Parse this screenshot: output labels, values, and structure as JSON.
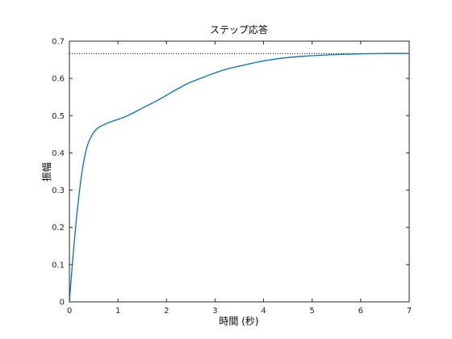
{
  "chart_data": {
    "type": "line",
    "title": "ステップ応答",
    "xlabel": "時間 (秒)",
    "ylabel": "振幅",
    "xlim": [
      0,
      7
    ],
    "ylim": [
      0,
      0.7
    ],
    "x_ticks": [
      "0",
      "1",
      "2",
      "3",
      "4",
      "5",
      "6",
      "7"
    ],
    "y_ticks": [
      "0",
      "0.1",
      "0.2",
      "0.3",
      "0.4",
      "0.5",
      "0.6",
      "0.7"
    ],
    "grid": false,
    "legend": "none",
    "series": [
      {
        "color": "#0072bd",
        "style": "solid",
        "x": [
          0,
          0.05,
          0.1,
          0.15,
          0.2,
          0.25,
          0.3,
          0.35,
          0.4,
          0.5,
          0.6,
          0.7,
          0.8,
          1.0,
          1.2,
          1.5,
          1.8,
          2.0,
          2.3,
          2.5,
          2.8,
          3.0,
          3.3,
          3.5,
          4.0,
          4.5,
          5.0,
          5.5,
          6.0,
          6.5,
          7.0
        ],
        "y": [
          0,
          0.085,
          0.16,
          0.23,
          0.29,
          0.34,
          0.38,
          0.41,
          0.43,
          0.455,
          0.468,
          0.475,
          0.481,
          0.49,
          0.5,
          0.52,
          0.54,
          0.555,
          0.577,
          0.59,
          0.605,
          0.615,
          0.627,
          0.633,
          0.647,
          0.656,
          0.661,
          0.664,
          0.666,
          0.667,
          0.667
        ]
      }
    ],
    "reference_line": {
      "y": 0.6667,
      "style": "dotted",
      "color": "#000000"
    }
  }
}
